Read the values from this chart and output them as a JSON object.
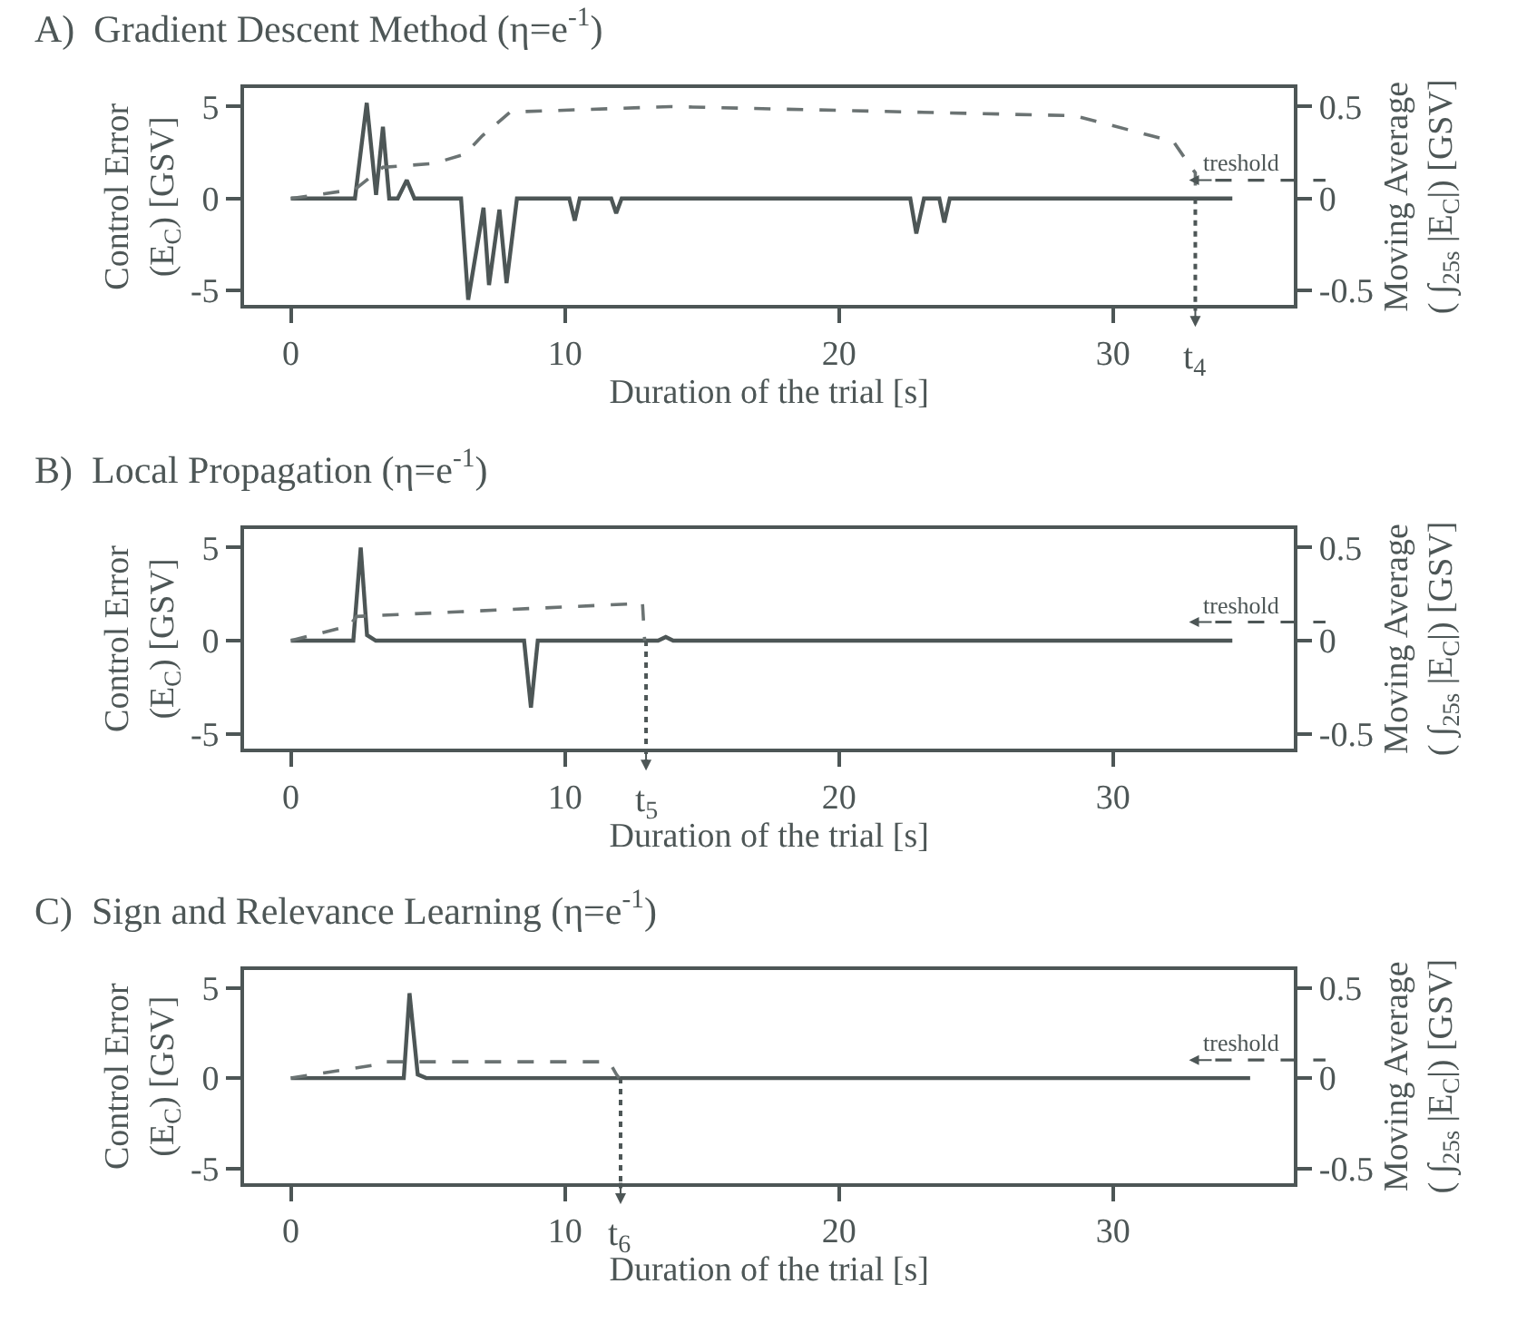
{
  "chart_data": [
    {
      "type": "line",
      "title": "A)  Gradient Descent Method (η=e$^{-1}$)",
      "xlabel": "Duration of the trial [s]",
      "ylabel": "Control Error\n(E$_{C}$) [GSV]",
      "y2label": "Moving Average\n( ∫$_{25s}$ |E$_{C}$|) [GSV]",
      "xlim": [
        -1.7,
        36.6
      ],
      "xticks": [
        0,
        10,
        20,
        30
      ],
      "ylim": [
        -5.8,
        6
      ],
      "yticks": [
        -5,
        0,
        5
      ],
      "y2lim": [
        -0.58,
        0.6
      ],
      "y2ticks": [
        -0.5,
        0,
        0.5
      ],
      "series": [
        {
          "color": "#4d5656",
          "line_style": "solid",
          "x": [
            0,
            2.34,
            2.77,
            3.11,
            3.36,
            3.59,
            3.9,
            4.23,
            4.51,
            6.21,
            6.47,
            7.03,
            7.23,
            7.61,
            7.87,
            8.25,
            10.16,
            10.36,
            10.54,
            11.69,
            11.87,
            12.07,
            22.6,
            22.82,
            23.1,
            23.66,
            23.84,
            24.04,
            34.35
          ],
          "values": [
            0,
            0,
            5.2,
            0.2,
            3.9,
            0,
            0,
            1.0,
            0,
            0,
            -5.5,
            -0.5,
            -4.7,
            -0.6,
            -4.6,
            0,
            0,
            -1.2,
            0,
            0,
            -0.8,
            0,
            0,
            -1.9,
            0,
            0,
            -1.3,
            0,
            0
          ]
        },
        {
          "color": "#6b7373",
          "line_style": "dashed",
          "axis": "y2",
          "x": [
            0,
            2.34,
            3.36,
            5.19,
            6.34,
            6.98,
            8.0,
            13.86,
            28.6,
            32.2,
            32.8,
            33.0,
            33.0
          ],
          "values": [
            0,
            0.05,
            0.17,
            0.19,
            0.24,
            0.34,
            0.47,
            0.5,
            0.45,
            0.31,
            0.18,
            0.14,
            0
          ]
        }
      ],
      "ref_lines": [
        {
          "axis": "x",
          "value": 33.0,
          "label": "t$_{4}$",
          "line_style": "dotted"
        },
        {
          "axis": "y2",
          "value": 0.1,
          "label": "treshold",
          "line_style": "dashed"
        }
      ]
    },
    {
      "type": "line",
      "title": "B)  Local Propagation (η=e$^{-1}$)",
      "xlabel": "Duration of the trial [s]",
      "ylabel": "Control Error\n(E$_{C}$) [GSV]",
      "y2label": "Moving Average\n( ∫$_{25s}$ |E$_{C}$|) [GSV]",
      "xlim": [
        -1.7,
        36.6
      ],
      "xticks": [
        0,
        10,
        20,
        30
      ],
      "ylim": [
        -5.8,
        6
      ],
      "yticks": [
        -5,
        0,
        5
      ],
      "y2lim": [
        -0.58,
        0.6
      ],
      "y2ticks": [
        -0.5,
        0,
        0.5
      ],
      "series": [
        {
          "color": "#4d5656",
          "line_style": "solid",
          "x": [
            0,
            2.28,
            2.55,
            2.78,
            3.1,
            8.51,
            8.76,
            9.01,
            13.4,
            13.68,
            13.95,
            34.35
          ],
          "values": [
            0,
            0,
            5.0,
            0.3,
            0,
            0,
            -3.6,
            0,
            0,
            0.2,
            0,
            0
          ]
        },
        {
          "color": "#6b7373",
          "line_style": "dashed",
          "axis": "y2",
          "x": [
            0,
            2.14,
            2.4,
            12.83,
            12.91
          ],
          "values": [
            0,
            0.08,
            0.13,
            0.2,
            0
          ]
        }
      ],
      "ref_lines": [
        {
          "axis": "x",
          "value": 12.96,
          "label": "t$_{5}$",
          "line_style": "dotted"
        },
        {
          "axis": "y2",
          "value": 0.1,
          "label": "treshold",
          "line_style": "dashed"
        }
      ]
    },
    {
      "type": "line",
      "title": "C)  Sign and Relevance Learning (η=e$^{-1}$)",
      "xlabel": "Duration of the trial [s]",
      "ylabel": "Control Error\n(E$_{C}$) [GSV]",
      "y2label": "Moving Average\n( ∫$_{25s}$ |E$_{C}$|) [GSV]",
      "xlim": [
        -1.7,
        36.6
      ],
      "xticks": [
        0,
        10,
        20,
        30
      ],
      "ylim": [
        -5.8,
        6
      ],
      "yticks": [
        -5,
        0,
        5
      ],
      "y2lim": [
        -0.58,
        0.6
      ],
      "y2ticks": [
        -0.5,
        0,
        0.5
      ],
      "series": [
        {
          "color": "#4d5656",
          "line_style": "solid",
          "x": [
            0,
            4.12,
            4.33,
            4.63,
            4.94,
            35.0
          ],
          "values": [
            0,
            0,
            4.7,
            0.2,
            0,
            0
          ]
        },
        {
          "color": "#6b7373",
          "line_style": "dashed",
          "axis": "y2",
          "x": [
            0,
            2.95,
            3.16,
            11.62,
            11.88,
            11.98
          ],
          "values": [
            0,
            0.07,
            0.09,
            0.09,
            0.02,
            0
          ]
        }
      ],
      "ref_lines": [
        {
          "axis": "x",
          "value": 12.03,
          "label": "t$_{6}$",
          "line_style": "dotted"
        },
        {
          "axis": "y2",
          "value": 0.1,
          "label": "treshold",
          "line_style": "dashed"
        }
      ]
    }
  ]
}
